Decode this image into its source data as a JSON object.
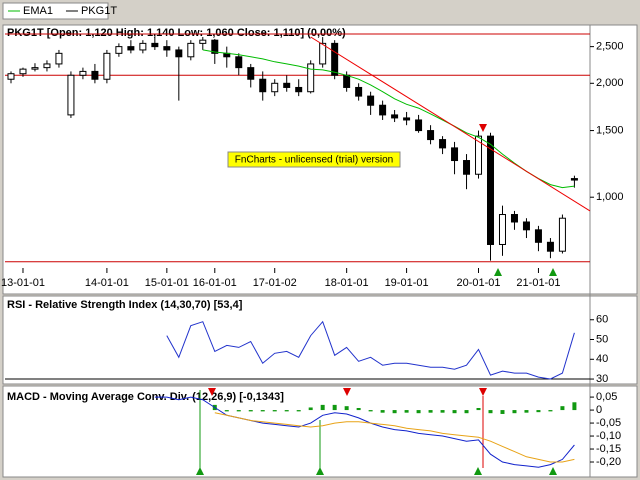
{
  "chart_data": [
    {
      "type": "candlestick",
      "title": "PKG1T [Open: 1,120 High: 1,140  Low: 1,060  Close: 1,110] (0,00%)",
      "annotation": "FnCharts - unlicensed (trial) version",
      "log_scale": true,
      "xlim": [
        -0.5,
        48.3
      ],
      "xticks": [
        {
          "value": 1,
          "label": "13-01-01"
        },
        {
          "value": 8,
          "label": "14-01-01"
        },
        {
          "value": 13,
          "label": "15-01-01"
        },
        {
          "value": 17,
          "label": "16-01-01"
        },
        {
          "value": 22,
          "label": "17-01-02"
        },
        {
          "value": 28,
          "label": "18-01-01"
        },
        {
          "value": 33,
          "label": "19-01-01"
        },
        {
          "value": 39,
          "label": "20-01-01"
        },
        {
          "value": 44,
          "label": "21-01-01"
        }
      ],
      "ylim": [
        650,
        2800
      ],
      "yticks": [
        {
          "value": 1000,
          "label": "1,000"
        },
        {
          "value": 1500,
          "label": "1,500"
        },
        {
          "value": 2000,
          "label": "2,000"
        },
        {
          "value": 2500,
          "label": "2,500"
        }
      ],
      "hlines": [
        2700,
        2100,
        675
      ],
      "hline_color": "#cc0000",
      "trendline": {
        "color": "#ee0000",
        "x": [
          25,
          48.3
        ],
        "values": [
          2650,
          920
        ]
      },
      "series": [
        {
          "name": "EMA1",
          "color": "#00bb00",
          "values": [
            null,
            null,
            null,
            null,
            null,
            null,
            null,
            null,
            null,
            null,
            null,
            null,
            null,
            null,
            null,
            null,
            2450,
            2420,
            2400,
            2380,
            2350,
            2320,
            2280,
            2250,
            2220,
            2180,
            2170,
            2140,
            2100,
            2050,
            1980,
            1900,
            1820,
            1760,
            1720,
            1660,
            1600,
            1540,
            1480,
            1440,
            1380,
            1300,
            1230,
            1170,
            1120,
            1080,
            1060,
            1070
          ]
        },
        {
          "name": "PKG1T",
          "color": "#000000",
          "open": [
            2050,
            2120,
            2180,
            2200,
            2250,
            1650,
            2100,
            2150,
            2050,
            2400,
            2500,
            2450,
            2550,
            2500,
            2450,
            2350,
            2550,
            2600,
            2400,
            2350,
            2200,
            2050,
            1900,
            2000,
            1950,
            1900,
            2250,
            2550,
            2100,
            1950,
            1850,
            1750,
            1650,
            1620,
            1600,
            1500,
            1420,
            1350,
            1250,
            1150,
            1450,
            750,
            900,
            860,
            820,
            760,
            720,
            1120
          ],
          "high": [
            2150,
            2200,
            2260,
            2300,
            2450,
            2150,
            2200,
            2250,
            2450,
            2550,
            2600,
            2600,
            2650,
            2600,
            2500,
            2600,
            2650,
            2620,
            2500,
            2400,
            2250,
            2150,
            2050,
            2100,
            2050,
            2300,
            2650,
            2600,
            2150,
            2000,
            1900,
            1800,
            1700,
            1680,
            1650,
            1550,
            1450,
            1400,
            1300,
            1500,
            1480,
            950,
            920,
            880,
            840,
            780,
            900,
            1140
          ],
          "low": [
            2000,
            2080,
            2150,
            2150,
            2200,
            1620,
            2050,
            2000,
            2000,
            2350,
            2400,
            2400,
            2450,
            2350,
            1800,
            2300,
            2450,
            2250,
            2200,
            2100,
            1950,
            1800,
            1850,
            1900,
            1850,
            1880,
            2200,
            2050,
            1900,
            1800,
            1650,
            1600,
            1580,
            1550,
            1480,
            1380,
            1300,
            1150,
            1050,
            1120,
            680,
            700,
            820,
            780,
            720,
            690,
            710,
            1060
          ],
          "close": [
            2120,
            2180,
            2200,
            2250,
            2400,
            2100,
            2150,
            2050,
            2400,
            2500,
            2450,
            2550,
            2500,
            2450,
            2350,
            2550,
            2600,
            2400,
            2350,
            2200,
            2050,
            1900,
            2000,
            1950,
            1900,
            2250,
            2550,
            2100,
            1950,
            1850,
            1750,
            1650,
            1620,
            1600,
            1500,
            1420,
            1350,
            1250,
            1150,
            1450,
            750,
            900,
            860,
            820,
            760,
            720,
            880,
            1110
          ]
        }
      ]
    },
    {
      "type": "line",
      "title": "RSI - Relative Strength Index (14,30,70) [53,4]",
      "xlim": [
        -0.5,
        48.3
      ],
      "ylim": [
        28,
        71
      ],
      "yticks": [
        30,
        40,
        50,
        60
      ],
      "hlines": [
        30
      ],
      "hline_color": "#000000",
      "series": [
        {
          "color": "#2233cc",
          "values": [
            null,
            null,
            null,
            null,
            null,
            null,
            null,
            null,
            null,
            null,
            null,
            null,
            null,
            52,
            41,
            57,
            59,
            44,
            47,
            46,
            49,
            38,
            43,
            44,
            41,
            52,
            59,
            42,
            46,
            39,
            41,
            37,
            38,
            38,
            37,
            36,
            36,
            35,
            37,
            45,
            32,
            34,
            33,
            33,
            31,
            30,
            33,
            53.4
          ]
        }
      ]
    },
    {
      "type": "line",
      "title": "MACD - Moving Average Conv. Div. (12,26,9) [-0,1343]",
      "xlim": [
        -0.5,
        48.3
      ],
      "ylim": [
        -0.25,
        0.085
      ],
      "yticks": [
        {
          "value": -0.2,
          "label": "-0,20"
        },
        {
          "value": -0.15,
          "label": "-0,15"
        },
        {
          "value": -0.1,
          "label": "-0,10"
        },
        {
          "value": -0.05,
          "label": "-0,05"
        },
        0,
        {
          "value": 0.05,
          "label": "0,05"
        }
      ],
      "histogram": {
        "color": "#119911",
        "values": [
          null,
          null,
          null,
          null,
          null,
          null,
          null,
          null,
          null,
          null,
          null,
          null,
          null,
          null,
          null,
          null,
          null,
          0.02,
          -0.005,
          -0.005,
          -0.005,
          -0.005,
          -0.005,
          -0.005,
          -0.005,
          0.01,
          0.02,
          0.02,
          0.015,
          0.008,
          -0.005,
          -0.01,
          -0.012,
          -0.01,
          -0.012,
          -0.01,
          -0.01,
          -0.012,
          -0.012,
          0.008,
          -0.012,
          -0.015,
          -0.012,
          -0.01,
          -0.008,
          -0.005,
          0.015,
          0.03
        ]
      },
      "series": [
        {
          "color": "#1122cc",
          "values": [
            null,
            null,
            null,
            null,
            null,
            null,
            null,
            null,
            null,
            null,
            null,
            null,
            0.05,
            0.05,
            0.04,
            0.05,
            0.04,
            0.01,
            -0.02,
            -0.03,
            -0.04,
            -0.05,
            -0.055,
            -0.06,
            -0.065,
            -0.05,
            -0.02,
            -0.01,
            -0.015,
            -0.03,
            -0.05,
            -0.065,
            -0.075,
            -0.08,
            -0.09,
            -0.095,
            -0.1,
            -0.11,
            -0.12,
            -0.115,
            -0.17,
            -0.2,
            -0.21,
            -0.215,
            -0.22,
            -0.21,
            -0.19,
            -0.1343
          ]
        },
        {
          "color": "#e8a317",
          "values": [
            null,
            null,
            null,
            null,
            null,
            null,
            null,
            null,
            null,
            null,
            null,
            null,
            null,
            null,
            null,
            null,
            null,
            -0.01,
            -0.02,
            -0.03,
            -0.04,
            -0.045,
            -0.05,
            -0.055,
            -0.06,
            -0.065,
            -0.06,
            -0.05,
            -0.045,
            -0.045,
            -0.05,
            -0.055,
            -0.06,
            -0.07,
            -0.075,
            -0.08,
            -0.09,
            -0.095,
            -0.1,
            -0.105,
            -0.12,
            -0.14,
            -0.16,
            -0.18,
            -0.19,
            -0.2,
            -0.2,
            -0.19
          ]
        }
      ]
    }
  ]
}
